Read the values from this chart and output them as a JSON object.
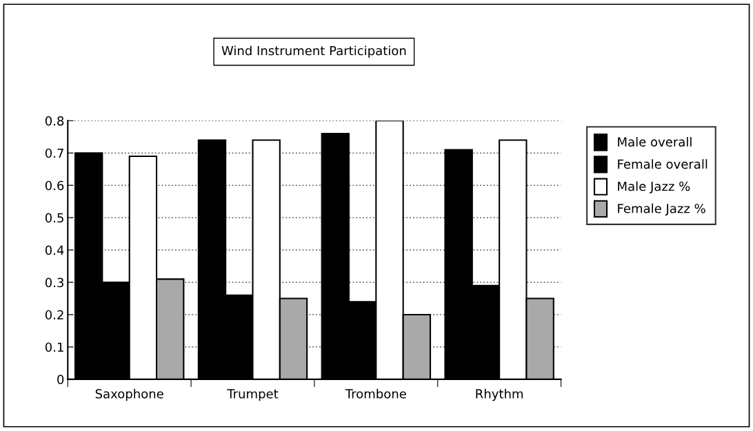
{
  "chart_data": {
    "type": "bar",
    "title": "Wind Instrument Participation",
    "categories": [
      "Saxophone",
      "Trumpet",
      "Trombone",
      "Rhythm"
    ],
    "series": [
      {
        "name": "Male overall",
        "color": "#000000",
        "values": [
          0.7,
          0.74,
          0.76,
          0.71
        ]
      },
      {
        "name": "Female overall",
        "color": "#000000",
        "values": [
          0.3,
          0.26,
          0.24,
          0.29
        ]
      },
      {
        "name": "Male Jazz %",
        "color": "#ffffff",
        "values": [
          0.69,
          0.74,
          0.8,
          0.74
        ]
      },
      {
        "name": "Female Jazz %",
        "color": "#a9a9a9",
        "values": [
          0.31,
          0.25,
          0.2,
          0.25
        ]
      }
    ],
    "ylim": [
      0,
      0.8
    ],
    "yticks": [
      0,
      0.1,
      0.2,
      0.3,
      0.4,
      0.5,
      0.6,
      0.7,
      0.8
    ],
    "grid": "y",
    "legend": "right"
  }
}
